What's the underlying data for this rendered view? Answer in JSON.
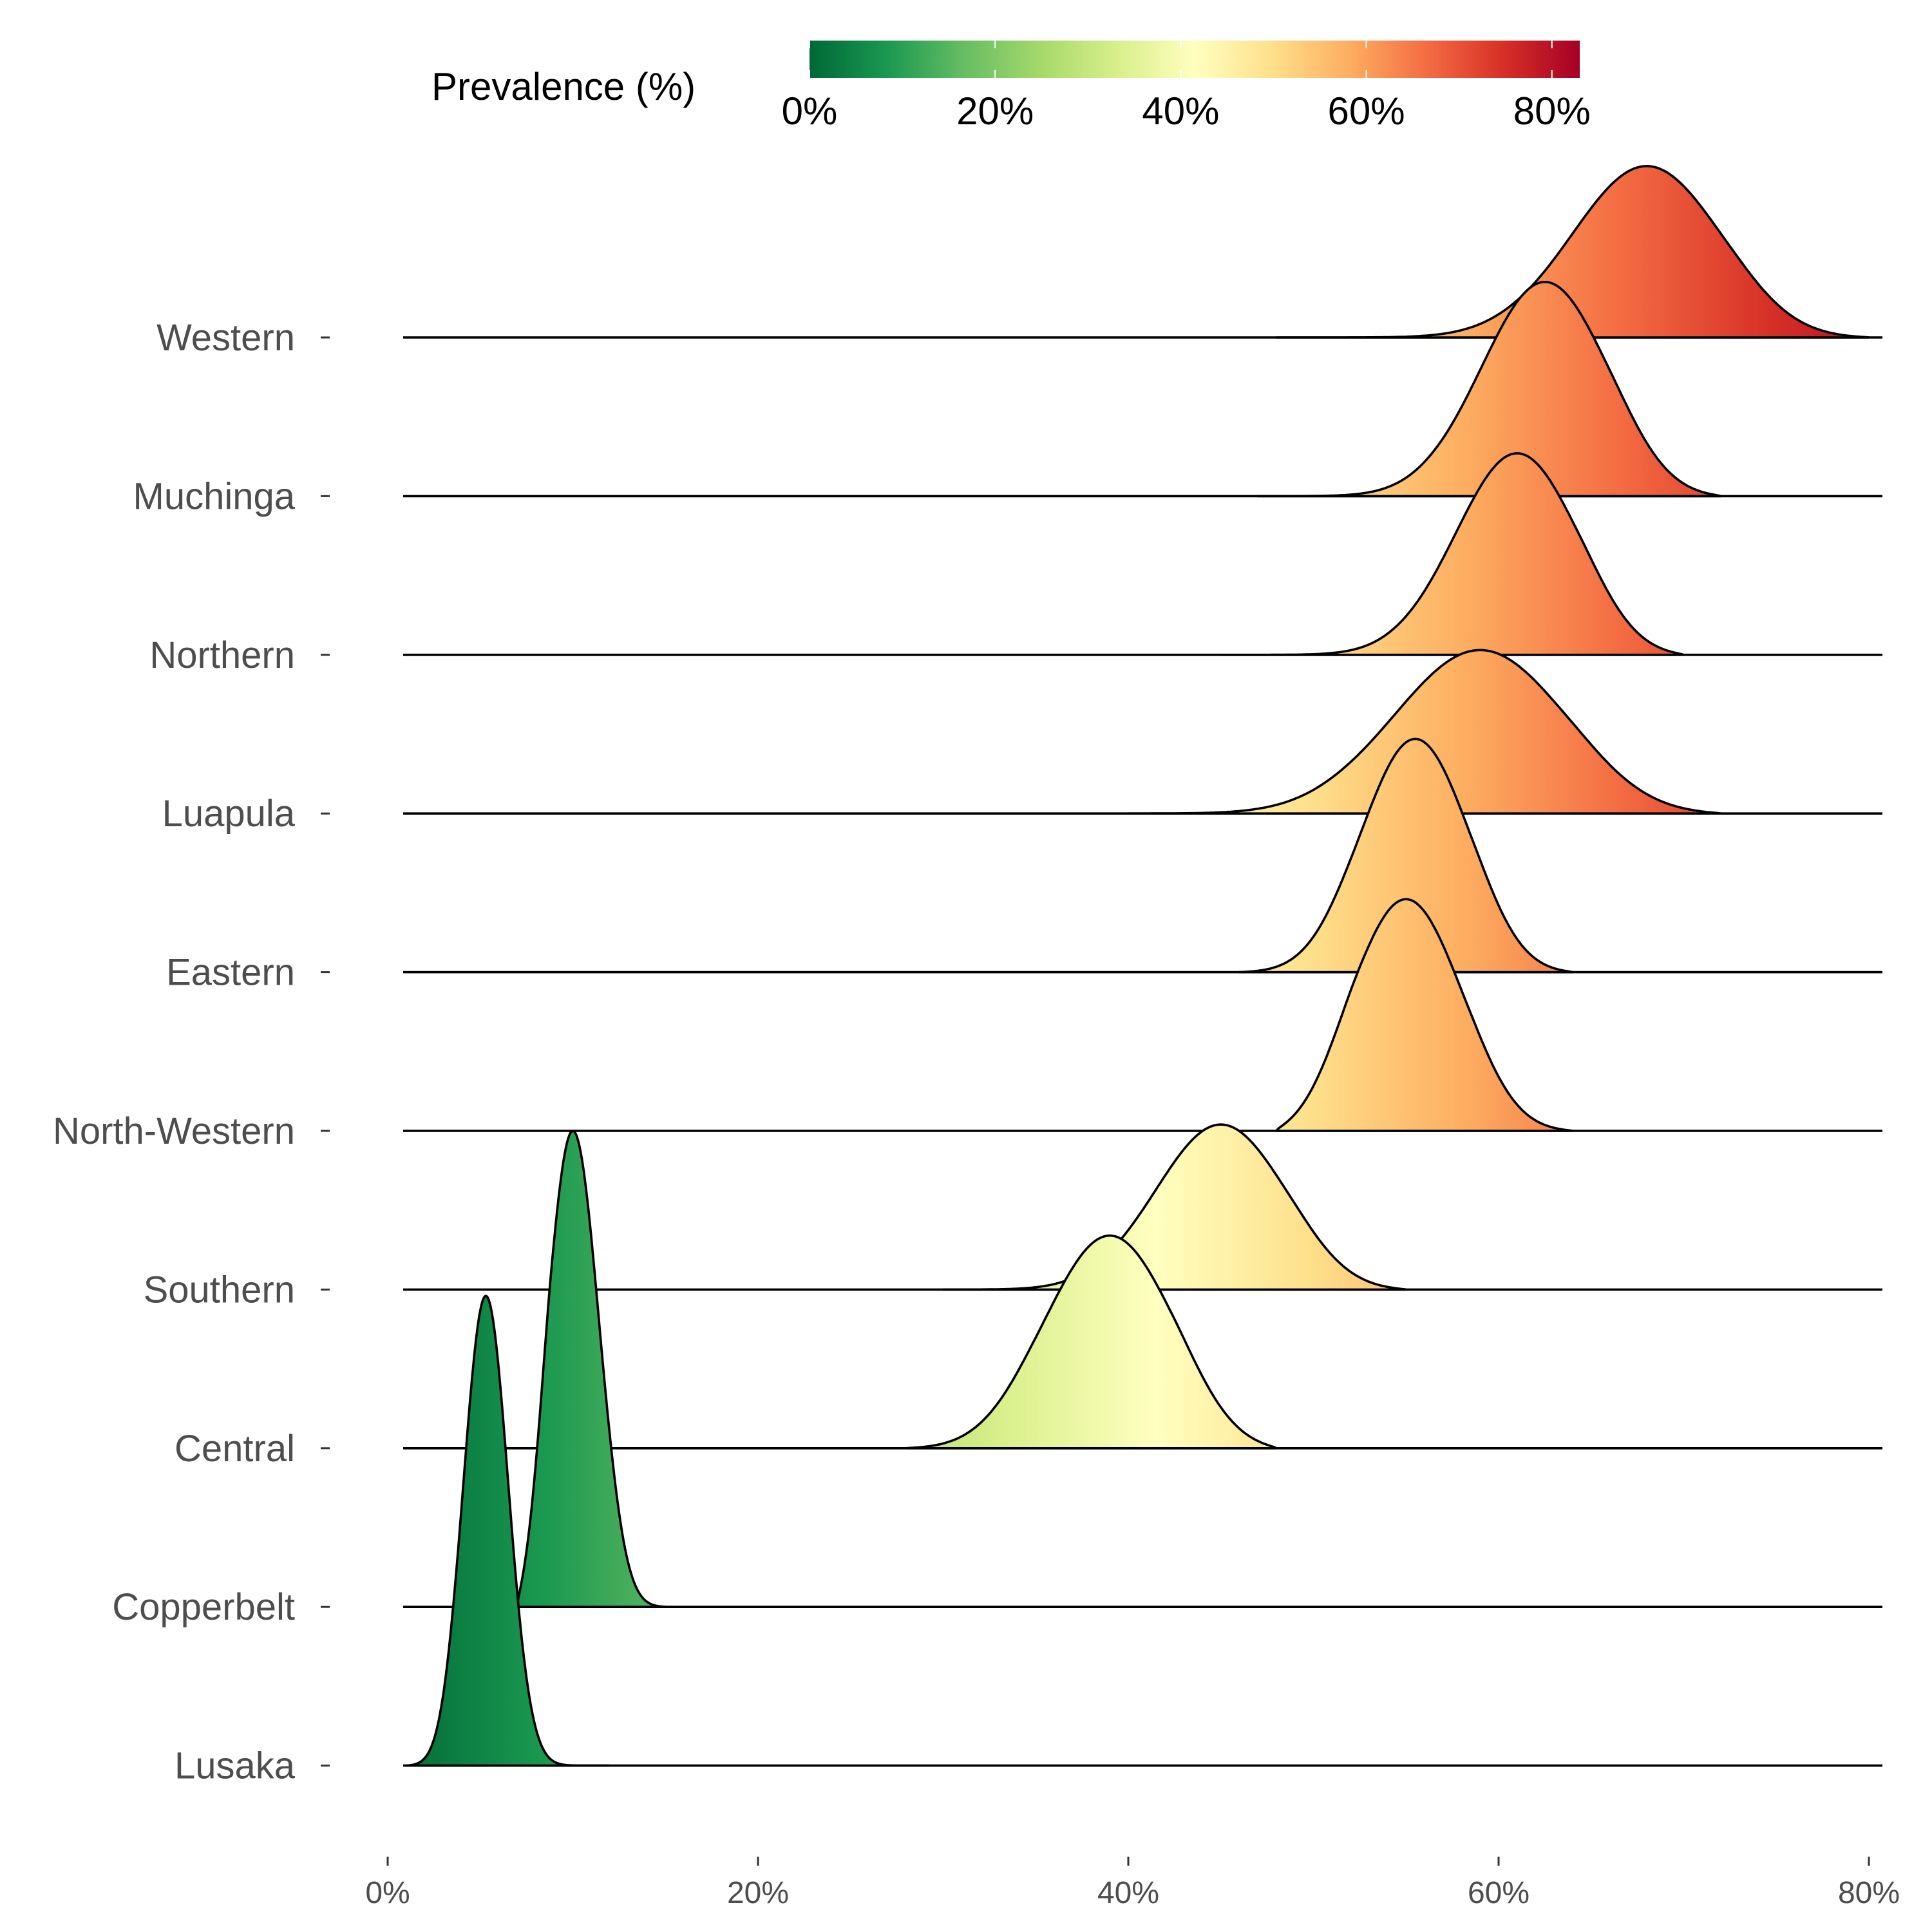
{
  "chart_data": {
    "type": "ridgeline",
    "title": "",
    "xlabel": "",
    "ylabel": "",
    "xlim": [
      0,
      80
    ],
    "x_ticks": [
      "0%",
      "20%",
      "40%",
      "60%",
      "80%"
    ],
    "x_tick_values": [
      0,
      20,
      40,
      60,
      80
    ],
    "grid": false,
    "legend": {
      "title": "Prevalence (%)",
      "placement": "top",
      "ticks": [
        "0%",
        "20%",
        "40%",
        "60%",
        "80%"
      ],
      "tick_values": [
        0,
        20,
        40,
        60,
        80
      ],
      "range": [
        0,
        83
      ],
      "palette": [
        "#006837",
        "#1a9850",
        "#66bd63",
        "#a6d96a",
        "#d9ef8b",
        "#ffffbf",
        "#fee08b",
        "#fdae61",
        "#f46d43",
        "#d73027",
        "#a50026"
      ]
    },
    "series": [
      {
        "name": "Western",
        "mode": 68,
        "sd": 4.0,
        "min": 48,
        "max": 80
      },
      {
        "name": "Muchinga",
        "mode": 62.5,
        "sd": 3.4,
        "min": 47,
        "max": 72
      },
      {
        "name": "Northern",
        "mode": 61,
        "sd": 3.3,
        "min": 45,
        "max": 70
      },
      {
        "name": "Luapula",
        "mode": 59,
        "sd": 4.6,
        "min": 40,
        "max": 72
      },
      {
        "name": "Eastern",
        "mode": 55.5,
        "sd": 2.9,
        "min": 46,
        "max": 64
      },
      {
        "name": "North-Western",
        "mode": 55,
        "sd": 3.0,
        "min": 48,
        "max": 64
      },
      {
        "name": "Southern",
        "mode": 45,
        "sd": 3.5,
        "min": 30,
        "max": 55
      },
      {
        "name": "Central",
        "mode": 39,
        "sd": 3.5,
        "min": 28,
        "max": 48
      },
      {
        "name": "Copperbelt",
        "mode": 10,
        "sd": 1.4,
        "min": 7,
        "max": 15
      },
      {
        "name": "Lusaka",
        "mode": 5.3,
        "sd": 1.2,
        "min": 1,
        "max": 12
      }
    ],
    "row_peak_heights": [
      1.08,
      1.35,
      1.27,
      1.03,
      1.47,
      1.46,
      1.04,
      1.34,
      3.0,
      2.96
    ]
  }
}
